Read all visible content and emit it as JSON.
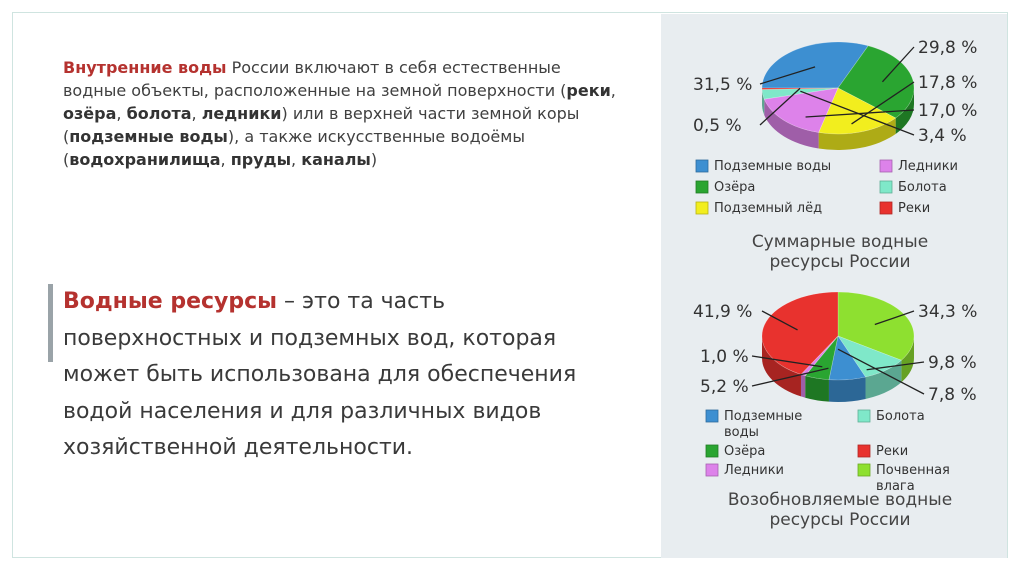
{
  "intro": {
    "p1": "Внутренние воды",
    "p2": " России включают в себя естественные водные объекты, расположенные на земной поверхности (",
    "b1": "реки",
    "s1": ", ",
    "b2": "озёра",
    "s2": ", ",
    "b3": "болота",
    "s3": ", ",
    "b4": "ледники",
    "p3": ") или в верхней части земной коры (",
    "b5": "подземные воды",
    "p4": "), а также искусственные водоёмы (",
    "b6": "водохранилища",
    "s4": ", ",
    "b7": "пруды",
    "s5": ", ",
    "b8": "каналы",
    "p5": ")"
  },
  "definition": {
    "lead": "Водные ресурсы",
    "text": " – это та часть поверхностных и подземных вод, которая может быть использована для обеспечения водой населения и для различных видов хозяйственной деятельности."
  },
  "chart_data": [
    {
      "type": "pie",
      "title": "Суммарные водные ресурсы России",
      "slices": [
        {
          "name": "Подземные воды",
          "value": 31.5,
          "label": "31,5 %",
          "color": "#3d8fd1"
        },
        {
          "name": "Озёра",
          "value": 29.8,
          "label": "29,8 %",
          "color": "#2aa531"
        },
        {
          "name": "Подземный лёд",
          "value": 17.8,
          "label": "17,8 %",
          "color": "#f2ee1e"
        },
        {
          "name": "Ледники",
          "value": 17.0,
          "label": "17,0 %",
          "color": "#dd82ea"
        },
        {
          "name": "Болота",
          "value": 3.4,
          "label": "3,4 %",
          "color": "#7fe8c9"
        },
        {
          "name": "Реки",
          "value": 0.5,
          "label": "0,5 %",
          "color": "#e8322e"
        }
      ],
      "legend": [
        {
          "lines": [
            "Подземные воды"
          ],
          "color": "#3d8fd1"
        },
        {
          "lines": [
            "Ледники"
          ],
          "color": "#dd82ea"
        },
        {
          "lines": [
            "Озёра"
          ],
          "color": "#2aa531"
        },
        {
          "lines": [
            "Болота"
          ],
          "color": "#7fe8c9"
        },
        {
          "lines": [
            "Подземный лёд"
          ],
          "color": "#f2ee1e"
        },
        {
          "lines": [
            "Реки"
          ],
          "color": "#e8322e"
        }
      ]
    },
    {
      "type": "pie",
      "title": "Возобновляемые водные ресурсы России",
      "slices": [
        {
          "name": "Почвенная влага",
          "value": 34.3,
          "label": "34,3 %",
          "color": "#8ee030"
        },
        {
          "name": "Болота",
          "value": 9.8,
          "label": "9,8 %",
          "color": "#7fe8c9"
        },
        {
          "name": "Подземные воды",
          "value": 7.8,
          "label": "7,8 %",
          "color": "#3d8fd1"
        },
        {
          "name": "Озёра",
          "value": 5.2,
          "label": "5,2 %",
          "color": "#2aa531"
        },
        {
          "name": "Ледники",
          "value": 1.0,
          "label": "1,0 %",
          "color": "#dd82ea"
        },
        {
          "name": "Реки",
          "value": 41.9,
          "label": "41,9 %",
          "color": "#e8322e"
        }
      ],
      "legend": [
        {
          "lines": [
            "Подземные",
            "воды"
          ],
          "color": "#3d8fd1"
        },
        {
          "lines": [
            "Болота"
          ],
          "color": "#7fe8c9"
        },
        {
          "lines": [
            "Озёра"
          ],
          "color": "#2aa531"
        },
        {
          "lines": [
            "Реки"
          ],
          "color": "#e8322e"
        },
        {
          "lines": [
            "Ледники"
          ],
          "color": "#dd82ea"
        },
        {
          "lines": [
            "Почвенная",
            "влага"
          ],
          "color": "#8ee030"
        }
      ]
    }
  ]
}
